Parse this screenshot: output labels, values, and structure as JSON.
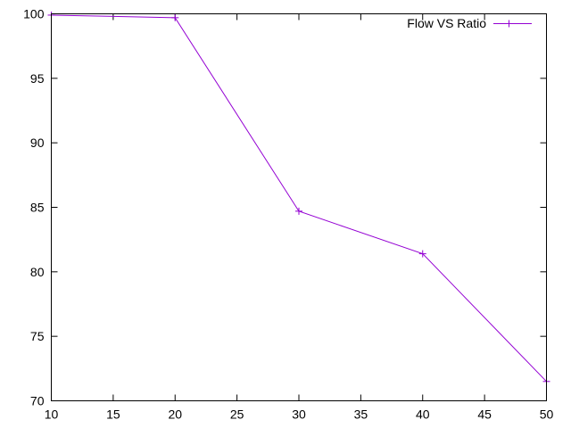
{
  "chart_data": {
    "type": "line",
    "title": "",
    "xlabel": "",
    "ylabel": "",
    "xlim": [
      10,
      50
    ],
    "ylim": [
      70,
      100
    ],
    "x_ticks": [
      10,
      15,
      20,
      25,
      30,
      35,
      40,
      45,
      50
    ],
    "y_ticks": [
      70,
      75,
      80,
      85,
      90,
      95,
      100
    ],
    "grid": false,
    "legend_position": "top-right",
    "series": [
      {
        "name": "Flow VS Ratio",
        "color": "#9400d3",
        "marker": "plus",
        "x": [
          10,
          20,
          30,
          40,
          50
        ],
        "y": [
          99.9,
          99.7,
          84.7,
          81.4,
          71.5
        ]
      }
    ]
  }
}
